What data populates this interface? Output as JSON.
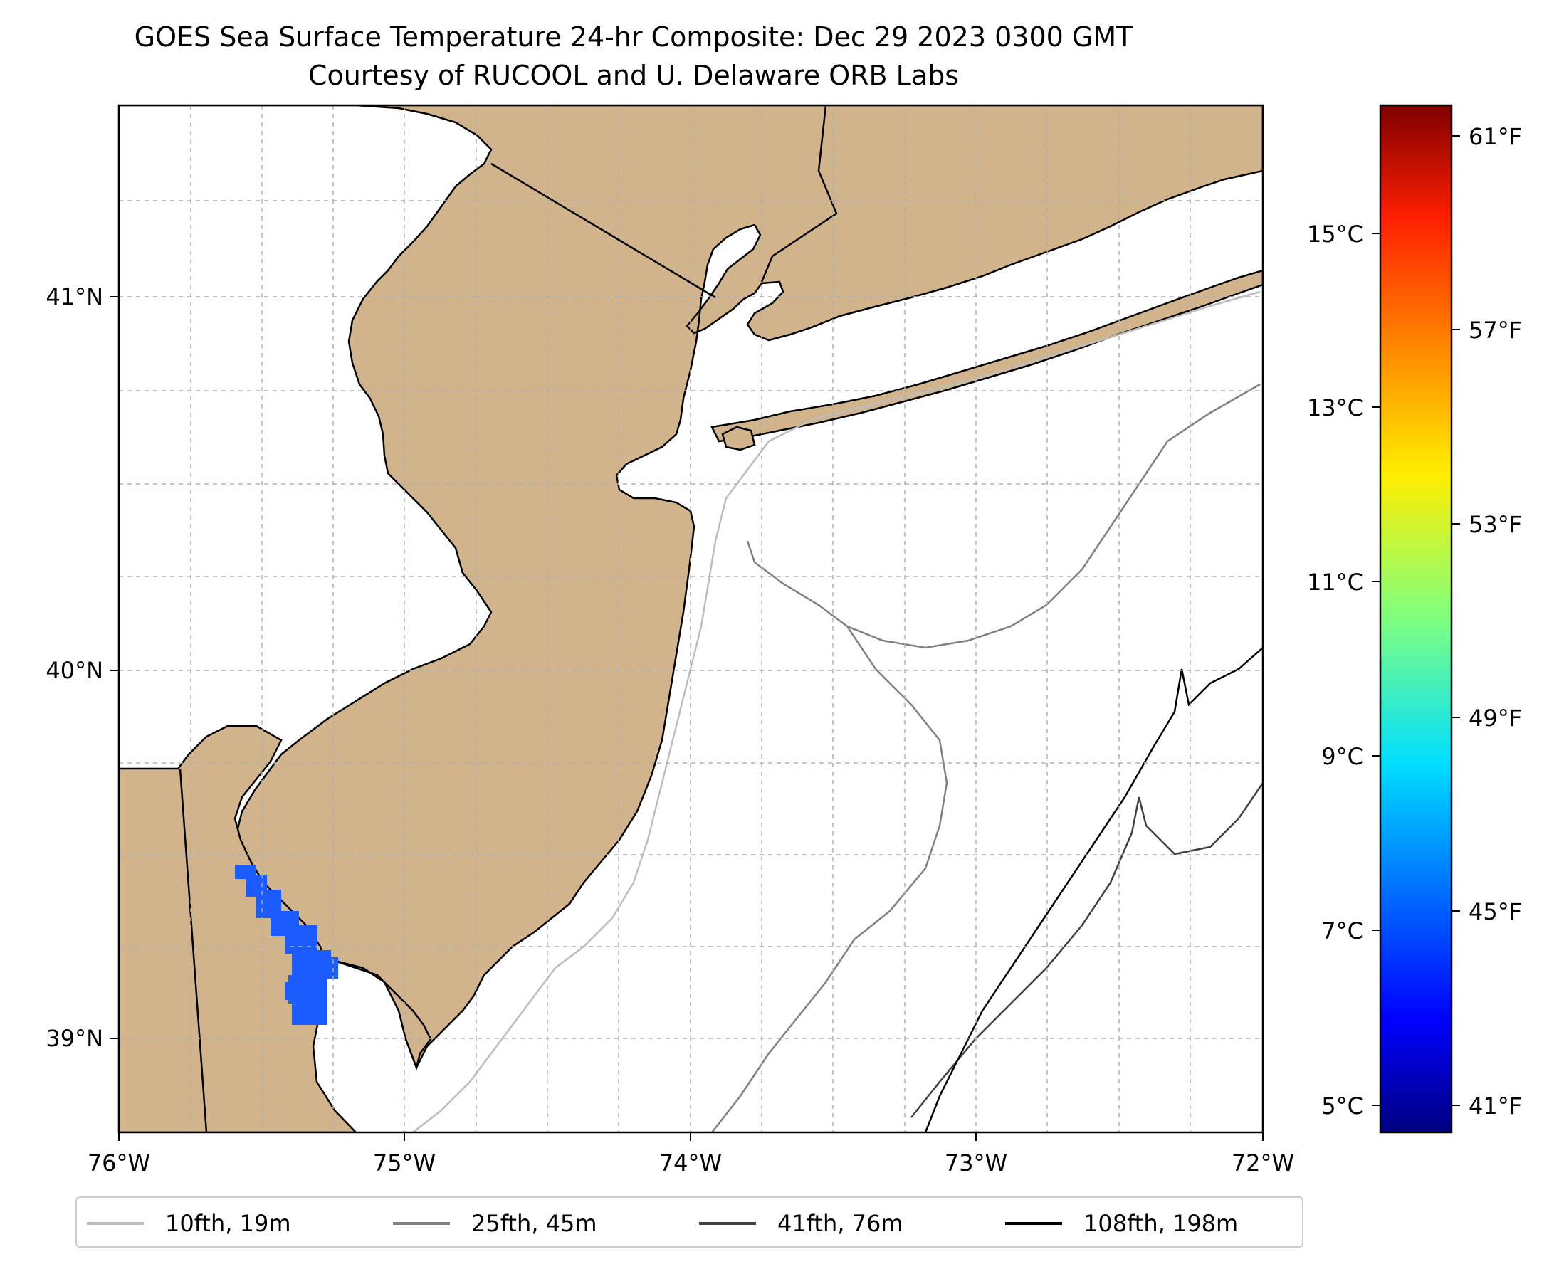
{
  "title": {
    "line1": "GOES Sea Surface Temperature 24-hr Composite: Dec 29 2023 0300 GMT",
    "line2": "Courtesy of RUCOOL and U. Delaware ORB Labs"
  },
  "map": {
    "lon_ticks": [
      "76°W",
      "75°W",
      "74°W",
      "73°W",
      "72°W"
    ],
    "lat_ticks": [
      "41°N",
      "40°N",
      "39°N"
    ],
    "land_color": "#d2b48c",
    "ocean_color": "#ffffff",
    "sst_cell_color": "#1a5cff"
  },
  "colorbar": {
    "celsius_ticks": [
      "15°C",
      "13°C",
      "11°C",
      "9°C",
      "7°C",
      "5°C"
    ],
    "fahrenheit_ticks": [
      "61°F",
      "57°F",
      "53°F",
      "49°F",
      "45°F",
      "41°F"
    ],
    "colormap": "jet"
  },
  "legend": {
    "items": [
      {
        "label": "10fth, 19m",
        "color": "#bdbdbd"
      },
      {
        "label": "25fth, 45m",
        "color": "#808080"
      },
      {
        "label": "41fth, 76m",
        "color": "#404040"
      },
      {
        "label": "108fth, 198m",
        "color": "#000000"
      }
    ]
  }
}
